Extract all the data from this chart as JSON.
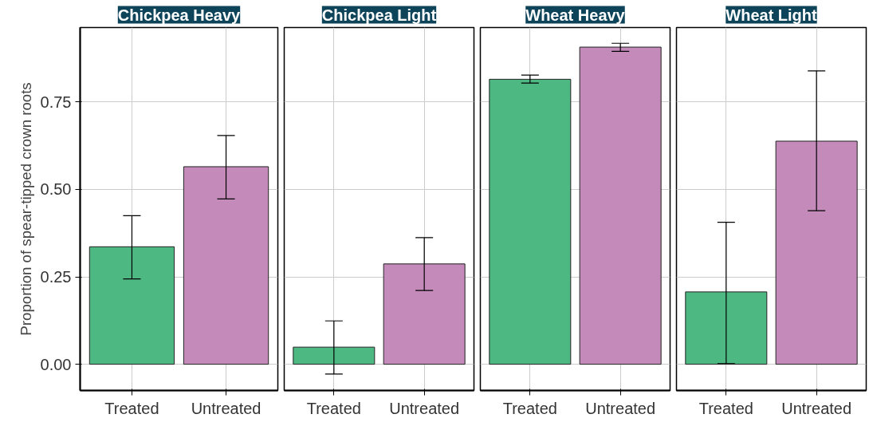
{
  "chart_data": [
    {
      "type": "bar",
      "title": "Chickpea Heavy",
      "ylabel": "Proportion of spear-tipped crown roots",
      "categories": [
        "Treated",
        "Untreated"
      ],
      "values": [
        0.336,
        0.565
      ],
      "colors": [
        "#4db882",
        "#c38aba"
      ],
      "errors": [
        [
          0.244,
          0.425
        ],
        [
          0.473,
          0.654
        ]
      ],
      "ylim": [
        -0.075,
        0.963
      ],
      "yticks": [
        {
          "value": 0,
          "label": "0.00"
        },
        {
          "value": 0.25,
          "label": "0.25"
        },
        {
          "value": 0.5,
          "label": "0.50"
        },
        {
          "value": 0.75,
          "label": "0.75"
        }
      ],
      "grid": true
    },
    {
      "type": "bar",
      "title": "Chickpea Light",
      "categories": [
        "Treated",
        "Untreated"
      ],
      "values": [
        0.049,
        0.287
      ],
      "colors": [
        "#4db882",
        "#c38aba"
      ],
      "errors": [
        [
          -0.028,
          0.124
        ],
        [
          0.211,
          0.362
        ]
      ],
      "ylim": [
        -0.075,
        0.963
      ],
      "yticks": [
        0,
        0.25,
        0.5,
        0.75
      ],
      "grid": true,
      "tick_labels": "x"
    },
    {
      "type": "bar",
      "title": "Wheat Heavy",
      "categories": [
        "Treated",
        "Untreated"
      ],
      "values": [
        0.815,
        0.907
      ],
      "colors": [
        "#4db882",
        "#c38aba"
      ],
      "errors": [
        [
          0.804,
          0.827
        ],
        [
          0.895,
          0.918
        ]
      ],
      "ylim": [
        -0.075,
        0.963
      ],
      "yticks": [
        0,
        0.25,
        0.5,
        0.75
      ],
      "grid": true,
      "tick_labels": "x"
    },
    {
      "type": "bar",
      "title": "Wheat Light",
      "categories": [
        "Treated",
        "Untreated"
      ],
      "values": [
        0.207,
        0.638
      ],
      "colors": [
        "#4db882",
        "#c38aba"
      ],
      "errors": [
        [
          0.002,
          0.406
        ],
        [
          0.439,
          0.839
        ]
      ],
      "ylim": [
        -0.075,
        0.963
      ],
      "yticks": [
        0,
        0.25,
        0.5,
        0.75
      ],
      "grid": true,
      "tick_labels": "x"
    }
  ]
}
